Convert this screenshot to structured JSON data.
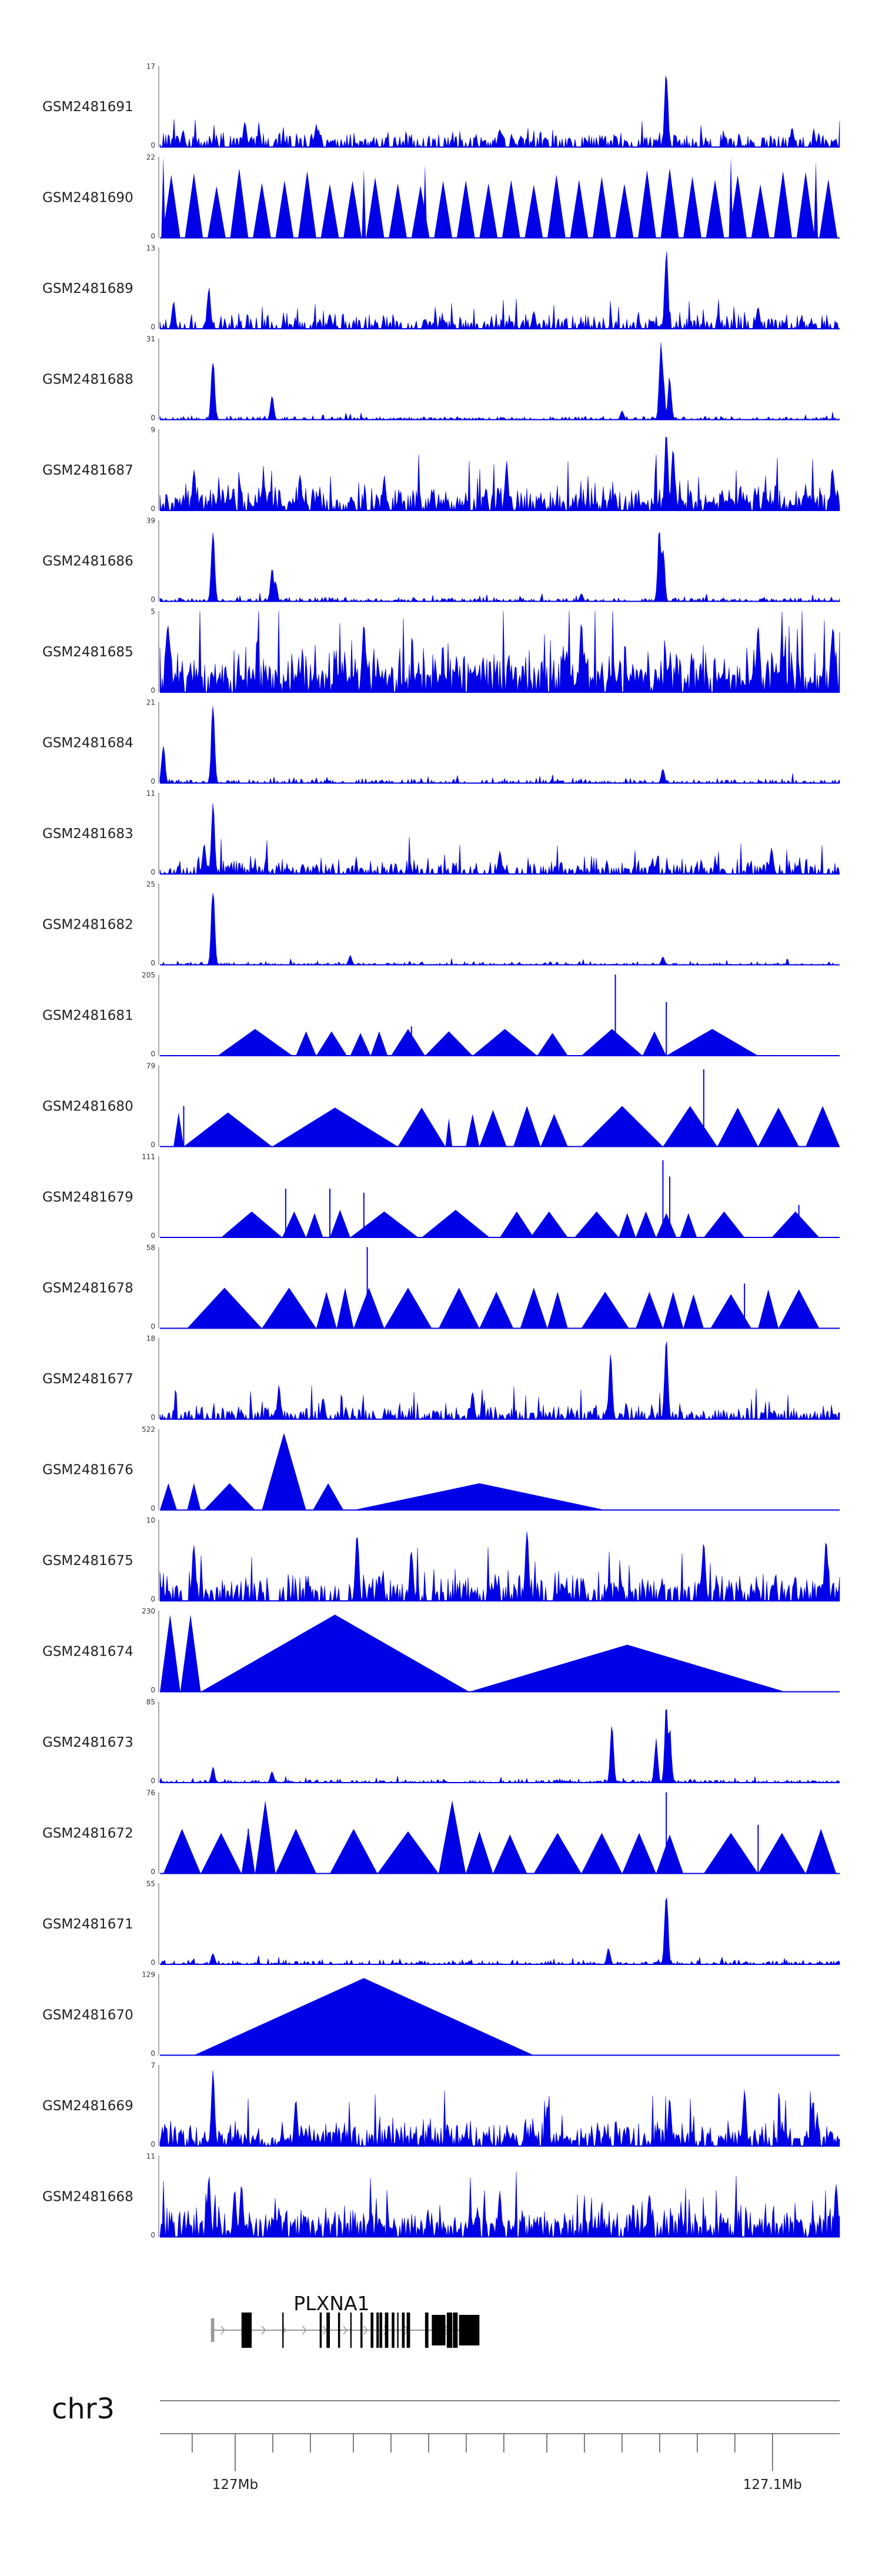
{
  "chart_data": {
    "type": "area",
    "title": "",
    "xlabel": "",
    "chromosome": "chr3",
    "region_mb": [
      126.986,
      127.1125
    ],
    "tracks": [
      {
        "name": "GSM2481691",
        "ymin": 0,
        "ymax": 17,
        "style": "signal",
        "baseline": 0.08,
        "noise": 0.14,
        "density": 0.55,
        "peaks": [
          [
            0.034,
            0.22
          ],
          [
            0.125,
            0.35
          ],
          [
            0.23,
            0.3
          ],
          [
            0.5,
            0.25
          ],
          [
            0.745,
            1.0
          ],
          [
            0.93,
            0.25
          ]
        ]
      },
      {
        "name": "GSM2481690",
        "ymin": 0,
        "ymax": 22,
        "style": "spikes",
        "extent": [
          0.0,
          1.0
        ],
        "count": 30,
        "height": 0.75,
        "spikes": [
          [
            0.005,
            1.0
          ],
          [
            0.3,
            0.85
          ],
          [
            0.39,
            0.9
          ],
          [
            0.84,
            1.0
          ],
          [
            0.965,
            0.95
          ]
        ]
      },
      {
        "name": "GSM2481689",
        "ymin": 0,
        "ymax": 13,
        "style": "signal",
        "baseline": 0.06,
        "noise": 0.16,
        "density": 0.55,
        "peaks": [
          [
            0.02,
            0.35
          ],
          [
            0.072,
            0.55
          ],
          [
            0.25,
            0.2
          ],
          [
            0.55,
            0.25
          ],
          [
            0.745,
            1.0
          ],
          [
            0.88,
            0.3
          ]
        ]
      },
      {
        "name": "GSM2481688",
        "ymin": 0,
        "ymax": 31,
        "style": "signal",
        "baseline": 0.015,
        "noise": 0.04,
        "density": 0.45,
        "peaks": [
          [
            0.078,
            0.82
          ],
          [
            0.165,
            0.3
          ],
          [
            0.68,
            0.12
          ],
          [
            0.74,
            0.6
          ],
          [
            0.737,
            1.0
          ],
          [
            0.75,
            0.55
          ]
        ]
      },
      {
        "name": "GSM2481687",
        "ymin": 0,
        "ymax": 9,
        "style": "signal",
        "baseline": 0.09,
        "noise": 0.3,
        "density": 0.8,
        "peaks": [
          [
            0.05,
            0.55
          ],
          [
            0.33,
            0.45
          ],
          [
            0.51,
            0.62
          ],
          [
            0.745,
            1.0
          ],
          [
            0.755,
            0.85
          ],
          [
            0.99,
            0.55
          ]
        ]
      },
      {
        "name": "GSM2481686",
        "ymin": 0,
        "ymax": 39,
        "style": "signal",
        "baseline": 0.02,
        "noise": 0.04,
        "density": 0.45,
        "peaks": [
          [
            0.078,
            0.98
          ],
          [
            0.165,
            0.42
          ],
          [
            0.17,
            0.28
          ],
          [
            0.62,
            0.1
          ],
          [
            0.735,
            1.0
          ],
          [
            0.74,
            0.75
          ]
        ]
      },
      {
        "name": "GSM2481685",
        "ymin": 0,
        "ymax": 5,
        "style": "signal",
        "baseline": 0.15,
        "noise": 0.55,
        "density": 0.85,
        "peaks": [
          [
            0.012,
            0.95
          ],
          [
            0.3,
            0.9
          ],
          [
            0.62,
            1.0
          ],
          [
            0.88,
            0.85
          ],
          [
            0.99,
            0.9
          ]
        ]
      },
      {
        "name": "GSM2481684",
        "ymin": 0,
        "ymax": 21,
        "style": "signal",
        "baseline": 0.02,
        "noise": 0.05,
        "density": 0.4,
        "peaks": [
          [
            0.005,
            0.5
          ],
          [
            0.078,
            1.0
          ],
          [
            0.74,
            0.18
          ]
        ]
      },
      {
        "name": "GSM2481683",
        "ymin": 0,
        "ymax": 11,
        "style": "signal",
        "baseline": 0.05,
        "noise": 0.2,
        "density": 0.6,
        "peaks": [
          [
            0.065,
            0.4
          ],
          [
            0.078,
            0.9
          ],
          [
            0.5,
            0.3
          ],
          [
            0.9,
            0.35
          ]
        ]
      },
      {
        "name": "GSM2481682",
        "ymin": 0,
        "ymax": 25,
        "style": "signal",
        "baseline": 0.01,
        "noise": 0.04,
        "density": 0.4,
        "peaks": [
          [
            0.078,
            1.0
          ],
          [
            0.28,
            0.12
          ],
          [
            0.74,
            0.1
          ]
        ]
      },
      {
        "name": "GSM2481681",
        "ymin": 0,
        "ymax": 205,
        "style": "tri",
        "triangles": [
          [
            0.085,
            0.195,
            0.33
          ],
          [
            0.2,
            0.23,
            0.3
          ],
          [
            0.23,
            0.275,
            0.3
          ],
          [
            0.28,
            0.31,
            0.28
          ],
          [
            0.31,
            0.335,
            0.3
          ],
          [
            0.34,
            0.39,
            0.33
          ],
          [
            0.39,
            0.46,
            0.3
          ],
          [
            0.46,
            0.555,
            0.33
          ],
          [
            0.555,
            0.6,
            0.28
          ],
          [
            0.62,
            0.71,
            0.33
          ],
          [
            0.71,
            0.745,
            0.3
          ],
          [
            0.745,
            0.88,
            0.33
          ]
        ],
        "spikes": [
          [
            0.37,
            0.36
          ],
          [
            0.67,
            1.0
          ],
          [
            0.745,
            0.66
          ]
        ]
      },
      {
        "name": "GSM2481680",
        "ymin": 0,
        "ymax": 79,
        "style": "tri",
        "triangles": [
          [
            0.02,
            0.035,
            0.42
          ],
          [
            0.035,
            0.165,
            0.42
          ],
          [
            0.165,
            0.35,
            0.48
          ],
          [
            0.35,
            0.42,
            0.48
          ],
          [
            0.42,
            0.43,
            0.35
          ],
          [
            0.45,
            0.47,
            0.4
          ],
          [
            0.47,
            0.51,
            0.45
          ],
          [
            0.52,
            0.56,
            0.5
          ],
          [
            0.56,
            0.6,
            0.4
          ],
          [
            0.62,
            0.74,
            0.5
          ],
          [
            0.74,
            0.82,
            0.5
          ],
          [
            0.82,
            0.88,
            0.48
          ],
          [
            0.88,
            0.94,
            0.48
          ],
          [
            0.95,
            1.0,
            0.5
          ]
        ],
        "spikes": [
          [
            0.035,
            0.5
          ],
          [
            0.8,
            0.95
          ]
        ]
      },
      {
        "name": "GSM2481679",
        "ymin": 0,
        "ymax": 111,
        "style": "tri",
        "triangles": [
          [
            0.09,
            0.18,
            0.32
          ],
          [
            0.18,
            0.215,
            0.32
          ],
          [
            0.215,
            0.24,
            0.3
          ],
          [
            0.25,
            0.28,
            0.34
          ],
          [
            0.28,
            0.38,
            0.32
          ],
          [
            0.385,
            0.485,
            0.34
          ],
          [
            0.5,
            0.55,
            0.32
          ],
          [
            0.545,
            0.6,
            0.32
          ],
          [
            0.61,
            0.675,
            0.32
          ],
          [
            0.675,
            0.7,
            0.3
          ],
          [
            0.7,
            0.73,
            0.32
          ],
          [
            0.73,
            0.76,
            0.3
          ],
          [
            0.765,
            0.79,
            0.3
          ],
          [
            0.8,
            0.86,
            0.32
          ],
          [
            0.9,
            0.97,
            0.32
          ]
        ],
        "spikes": [
          [
            0.185,
            0.6
          ],
          [
            0.25,
            0.6
          ],
          [
            0.3,
            0.55
          ],
          [
            0.74,
            0.95
          ],
          [
            0.75,
            0.75
          ],
          [
            0.94,
            0.4
          ]
        ]
      },
      {
        "name": "GSM2481678",
        "ymin": 0,
        "ymax": 58,
        "style": "tri",
        "triangles": [
          [
            0.04,
            0.15,
            0.5
          ],
          [
            0.15,
            0.23,
            0.5
          ],
          [
            0.23,
            0.26,
            0.45
          ],
          [
            0.26,
            0.285,
            0.5
          ],
          [
            0.285,
            0.33,
            0.5
          ],
          [
            0.33,
            0.4,
            0.5
          ],
          [
            0.41,
            0.47,
            0.5
          ],
          [
            0.47,
            0.52,
            0.45
          ],
          [
            0.53,
            0.57,
            0.5
          ],
          [
            0.57,
            0.6,
            0.45
          ],
          [
            0.62,
            0.69,
            0.45
          ],
          [
            0.7,
            0.74,
            0.45
          ],
          [
            0.74,
            0.77,
            0.45
          ],
          [
            0.77,
            0.8,
            0.42
          ],
          [
            0.81,
            0.87,
            0.42
          ],
          [
            0.88,
            0.91,
            0.48
          ],
          [
            0.91,
            0.97,
            0.48
          ]
        ],
        "spikes": [
          [
            0.305,
            1.0
          ],
          [
            0.86,
            0.55
          ]
        ]
      },
      {
        "name": "GSM2481677",
        "ymin": 0,
        "ymax": 18,
        "style": "signal",
        "baseline": 0.05,
        "noise": 0.18,
        "density": 0.6,
        "peaks": [
          [
            0.175,
            0.42
          ],
          [
            0.24,
            0.3
          ],
          [
            0.46,
            0.35
          ],
          [
            0.663,
            0.9
          ],
          [
            0.745,
            1.0
          ]
        ]
      },
      {
        "name": "GSM2481676",
        "ymin": 0,
        "ymax": 522,
        "style": "tri",
        "triangles": [
          [
            0.0,
            0.025,
            0.33
          ],
          [
            0.04,
            0.06,
            0.33
          ],
          [
            0.065,
            0.14,
            0.33
          ],
          [
            0.15,
            0.215,
            0.95
          ],
          [
            0.225,
            0.27,
            0.33
          ],
          [
            0.285,
            0.655,
            0.33
          ]
        ]
      },
      {
        "name": "GSM2481675",
        "ymin": 0,
        "ymax": 10,
        "style": "signal",
        "baseline": 0.12,
        "noise": 0.3,
        "density": 0.65,
        "peaks": [
          [
            0.05,
            0.75
          ],
          [
            0.29,
            0.95
          ],
          [
            0.37,
            0.7
          ],
          [
            0.54,
            0.9
          ],
          [
            0.8,
            0.75
          ],
          [
            0.98,
            0.85
          ]
        ]
      },
      {
        "name": "GSM2481674",
        "ymin": 0,
        "ymax": 230,
        "style": "tri",
        "triangles": [
          [
            0.0,
            0.03,
            0.95
          ],
          [
            0.03,
            0.06,
            0.95
          ],
          [
            0.06,
            0.455,
            0.95
          ],
          [
            0.455,
            0.92,
            0.58
          ]
        ]
      },
      {
        "name": "GSM2481673",
        "ymin": 0,
        "ymax": 85,
        "style": "signal",
        "baseline": 0.015,
        "noise": 0.04,
        "density": 0.45,
        "peaks": [
          [
            0.078,
            0.2
          ],
          [
            0.165,
            0.15
          ],
          [
            0.665,
            0.78
          ],
          [
            0.73,
            0.55
          ],
          [
            0.745,
            1.0
          ],
          [
            0.75,
            0.7
          ]
        ]
      },
      {
        "name": "GSM2481672",
        "ymin": 0,
        "ymax": 76,
        "style": "tri",
        "triangles": [
          [
            0.005,
            0.06,
            0.55
          ],
          [
            0.06,
            0.12,
            0.5
          ],
          [
            0.12,
            0.14,
            0.55
          ],
          [
            0.14,
            0.17,
            0.9
          ],
          [
            0.17,
            0.23,
            0.55
          ],
          [
            0.25,
            0.32,
            0.55
          ],
          [
            0.32,
            0.41,
            0.52
          ],
          [
            0.41,
            0.45,
            0.9
          ],
          [
            0.45,
            0.49,
            0.52
          ],
          [
            0.49,
            0.54,
            0.48
          ],
          [
            0.55,
            0.62,
            0.5
          ],
          [
            0.62,
            0.68,
            0.5
          ],
          [
            0.68,
            0.73,
            0.5
          ],
          [
            0.73,
            0.77,
            0.48
          ],
          [
            0.8,
            0.88,
            0.5
          ],
          [
            0.88,
            0.95,
            0.5
          ],
          [
            0.95,
            0.995,
            0.55
          ]
        ],
        "spikes": [
          [
            0.13,
            0.55
          ],
          [
            0.745,
            1.0
          ],
          [
            0.88,
            0.6
          ]
        ]
      },
      {
        "name": "GSM2481671",
        "ymin": 0,
        "ymax": 55,
        "style": "signal",
        "baseline": 0.015,
        "noise": 0.05,
        "density": 0.45,
        "peaks": [
          [
            0.078,
            0.15
          ],
          [
            0.66,
            0.22
          ],
          [
            0.745,
            1.0
          ]
        ]
      },
      {
        "name": "GSM2481670",
        "ymin": 0,
        "ymax": 129,
        "style": "tri",
        "triangles": [
          [
            0.05,
            0.55,
            0.95
          ]
        ]
      },
      {
        "name": "GSM2481669",
        "ymin": 0,
        "ymax": 7,
        "style": "signal",
        "baseline": 0.08,
        "noise": 0.3,
        "density": 0.75,
        "peaks": [
          [
            0.078,
            1.0
          ],
          [
            0.2,
            0.6
          ],
          [
            0.57,
            0.55
          ],
          [
            0.75,
            0.62
          ],
          [
            0.86,
            0.75
          ],
          [
            0.96,
            0.55
          ]
        ]
      },
      {
        "name": "GSM2481668",
        "ymin": 0,
        "ymax": 11,
        "style": "signal",
        "baseline": 0.12,
        "noise": 0.35,
        "density": 0.8,
        "peaks": [
          [
            0.072,
            0.8
          ],
          [
            0.11,
            0.62
          ],
          [
            0.12,
            0.7
          ],
          [
            0.5,
            0.62
          ],
          [
            0.72,
            0.6
          ],
          [
            0.995,
            0.7
          ]
        ]
      }
    ],
    "gene": {
      "name": "PLXNA1",
      "strand": "+",
      "span": [
        0.075,
        0.47
      ],
      "exons": [
        [
          0.075,
          0.08
        ],
        [
          0.12,
          0.125
        ],
        [
          0.125,
          0.13
        ],
        [
          0.128,
          0.135
        ],
        [
          0.18,
          0.182
        ],
        [
          0.235,
          0.238
        ],
        [
          0.245,
          0.25
        ],
        [
          0.262,
          0.265
        ],
        [
          0.28,
          0.282
        ],
        [
          0.295,
          0.298
        ],
        [
          0.31,
          0.314
        ],
        [
          0.3185,
          0.322
        ],
        [
          0.323,
          0.327
        ],
        [
          0.331,
          0.336
        ],
        [
          0.341,
          0.345
        ],
        [
          0.349,
          0.351
        ],
        [
          0.356,
          0.36
        ],
        [
          0.363,
          0.368
        ],
        [
          0.39,
          0.395
        ],
        [
          0.4,
          0.42
        ],
        [
          0.422,
          0.43
        ],
        [
          0.431,
          0.438
        ],
        [
          0.44,
          0.47
        ]
      ]
    },
    "axis": {
      "ticks": [
        127.0,
        127.1
      ],
      "tick_labels": [
        "127Mb",
        "127.1Mb"
      ],
      "minor_ticks": [
        126.992,
        127.0,
        127.007,
        127.014,
        127.022,
        127.029,
        127.036,
        127.043,
        127.05,
        127.058,
        127.065,
        127.072,
        127.079,
        127.086,
        127.093,
        127.1
      ]
    },
    "colors": {
      "signal": "#0000e6",
      "exon": "#000000",
      "intron": "#999999",
      "axis": "#555555",
      "text": "#222222"
    }
  }
}
